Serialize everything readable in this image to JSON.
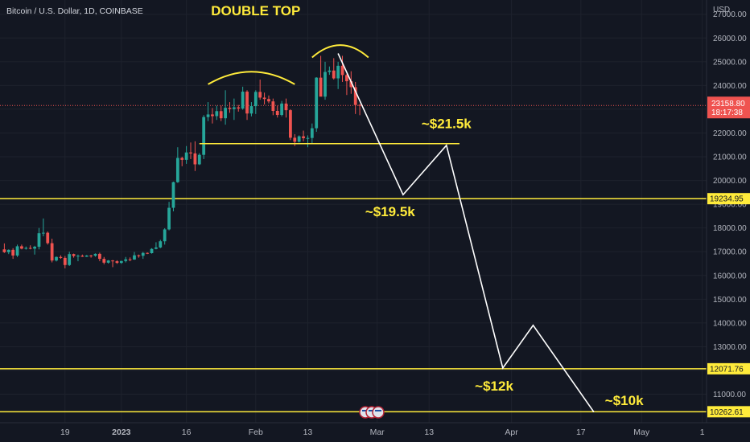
{
  "header": {
    "symbol_title": "Bitcoin / U.S. Dollar, 1D, COINBASE",
    "currency": "USD"
  },
  "colors": {
    "background": "#131722",
    "up": "#26a69a",
    "down": "#ef5350",
    "annotation": "#ffeb3b",
    "projection": "#ffffff",
    "axis_text": "#b2b5be"
  },
  "chart_data": {
    "type": "candlestick",
    "symbol": "Bitcoin / U.S. Dollar",
    "interval": "1D",
    "exchange": "COINBASE",
    "y_ticks": [
      27000,
      26000,
      25000,
      24000,
      23000,
      22000,
      21000,
      20000,
      19000,
      18000,
      17000,
      16000,
      15000,
      14000,
      13000,
      12000,
      11000
    ],
    "ylim": [
      9800,
      27600
    ],
    "x_tick_labels": [
      "19",
      "2023",
      "16",
      "Feb",
      "13",
      "Mar",
      "13",
      "Apr",
      "17",
      "May",
      "1"
    ],
    "x_tick_dates": [
      "2022-12-19",
      "2023-01-01",
      "2023-01-16",
      "2023-02-01",
      "2023-02-13",
      "2023-03-01",
      "2023-03-13",
      "2023-04-01",
      "2023-04-17",
      "2023-05-01",
      "2023-05-15"
    ],
    "xlim": [
      "2022-12-04",
      "2023-05-16"
    ],
    "candles": [
      {
        "d": "2022-12-05",
        "o": 17100,
        "h": 17350,
        "l": 16950,
        "c": 16980
      },
      {
        "d": "2022-12-06",
        "o": 16980,
        "h": 17100,
        "l": 16900,
        "c": 17080
      },
      {
        "d": "2022-12-07",
        "o": 17080,
        "h": 17150,
        "l": 16700,
        "c": 16840
      },
      {
        "d": "2022-12-08",
        "o": 16840,
        "h": 17300,
        "l": 16780,
        "c": 17230
      },
      {
        "d": "2022-12-09",
        "o": 17230,
        "h": 17300,
        "l": 17100,
        "c": 17130
      },
      {
        "d": "2022-12-10",
        "o": 17130,
        "h": 17220,
        "l": 17090,
        "c": 17160
      },
      {
        "d": "2022-12-11",
        "o": 17160,
        "h": 17270,
        "l": 17100,
        "c": 17130
      },
      {
        "d": "2022-12-12",
        "o": 17130,
        "h": 17250,
        "l": 16880,
        "c": 17210
      },
      {
        "d": "2022-12-13",
        "o": 17210,
        "h": 18000,
        "l": 17100,
        "c": 17780
      },
      {
        "d": "2022-12-14",
        "o": 17780,
        "h": 18400,
        "l": 17650,
        "c": 17800
      },
      {
        "d": "2022-12-15",
        "o": 17800,
        "h": 17850,
        "l": 17300,
        "c": 17360
      },
      {
        "d": "2022-12-16",
        "o": 17360,
        "h": 17550,
        "l": 16550,
        "c": 16630
      },
      {
        "d": "2022-12-17",
        "o": 16630,
        "h": 16800,
        "l": 16590,
        "c": 16780
      },
      {
        "d": "2022-12-18",
        "o": 16780,
        "h": 16850,
        "l": 16700,
        "c": 16740
      },
      {
        "d": "2022-12-19",
        "o": 16740,
        "h": 16820,
        "l": 16300,
        "c": 16440
      },
      {
        "d": "2022-12-20",
        "o": 16440,
        "h": 17000,
        "l": 16400,
        "c": 16900
      },
      {
        "d": "2022-12-21",
        "o": 16900,
        "h": 16920,
        "l": 16750,
        "c": 16820
      },
      {
        "d": "2022-12-22",
        "o": 16820,
        "h": 16880,
        "l": 16600,
        "c": 16830
      },
      {
        "d": "2022-12-23",
        "o": 16830,
        "h": 16880,
        "l": 16780,
        "c": 16790
      },
      {
        "d": "2022-12-24",
        "o": 16790,
        "h": 16860,
        "l": 16780,
        "c": 16840
      },
      {
        "d": "2022-12-25",
        "o": 16840,
        "h": 16870,
        "l": 16750,
        "c": 16830
      },
      {
        "d": "2022-12-26",
        "o": 16830,
        "h": 16930,
        "l": 16790,
        "c": 16910
      },
      {
        "d": "2022-12-27",
        "o": 16910,
        "h": 16960,
        "l": 16600,
        "c": 16700
      },
      {
        "d": "2022-12-28",
        "o": 16700,
        "h": 16780,
        "l": 16470,
        "c": 16540
      },
      {
        "d": "2022-12-29",
        "o": 16540,
        "h": 16650,
        "l": 16500,
        "c": 16630
      },
      {
        "d": "2022-12-30",
        "o": 16630,
        "h": 16650,
        "l": 16350,
        "c": 16600
      },
      {
        "d": "2022-12-31",
        "o": 16600,
        "h": 16640,
        "l": 16490,
        "c": 16530
      },
      {
        "d": "2023-01-01",
        "o": 16530,
        "h": 16620,
        "l": 16490,
        "c": 16610
      },
      {
        "d": "2023-01-02",
        "o": 16610,
        "h": 16780,
        "l": 16550,
        "c": 16680
      },
      {
        "d": "2023-01-03",
        "o": 16680,
        "h": 16760,
        "l": 16600,
        "c": 16670
      },
      {
        "d": "2023-01-04",
        "o": 16670,
        "h": 16990,
        "l": 16660,
        "c": 16850
      },
      {
        "d": "2023-01-05",
        "o": 16850,
        "h": 16880,
        "l": 16750,
        "c": 16830
      },
      {
        "d": "2023-01-06",
        "o": 16830,
        "h": 16990,
        "l": 16700,
        "c": 16950
      },
      {
        "d": "2023-01-07",
        "o": 16950,
        "h": 16970,
        "l": 16900,
        "c": 16940
      },
      {
        "d": "2023-01-08",
        "o": 16940,
        "h": 17150,
        "l": 16920,
        "c": 17120
      },
      {
        "d": "2023-01-09",
        "o": 17120,
        "h": 17400,
        "l": 17100,
        "c": 17180
      },
      {
        "d": "2023-01-10",
        "o": 17180,
        "h": 17500,
        "l": 17150,
        "c": 17440
      },
      {
        "d": "2023-01-11",
        "o": 17440,
        "h": 17990,
        "l": 17300,
        "c": 17940
      },
      {
        "d": "2023-01-12",
        "o": 17940,
        "h": 19100,
        "l": 17900,
        "c": 18850
      },
      {
        "d": "2023-01-13",
        "o": 18850,
        "h": 19950,
        "l": 18700,
        "c": 19930
      },
      {
        "d": "2023-01-14",
        "o": 19930,
        "h": 21400,
        "l": 19900,
        "c": 20950
      },
      {
        "d": "2023-01-15",
        "o": 20950,
        "h": 21000,
        "l": 20600,
        "c": 20870
      },
      {
        "d": "2023-01-16",
        "o": 20870,
        "h": 21450,
        "l": 20700,
        "c": 21180
      },
      {
        "d": "2023-01-17",
        "o": 21180,
        "h": 21600,
        "l": 20900,
        "c": 21140
      },
      {
        "d": "2023-01-18",
        "o": 21140,
        "h": 21650,
        "l": 20400,
        "c": 20680
      },
      {
        "d": "2023-01-19",
        "o": 20680,
        "h": 21150,
        "l": 20650,
        "c": 21080
      },
      {
        "d": "2023-01-20",
        "o": 21080,
        "h": 22750,
        "l": 20900,
        "c": 22670
      },
      {
        "d": "2023-01-21",
        "o": 22670,
        "h": 23300,
        "l": 22500,
        "c": 22780
      },
      {
        "d": "2023-01-22",
        "o": 22780,
        "h": 23050,
        "l": 22400,
        "c": 22710
      },
      {
        "d": "2023-01-23",
        "o": 22710,
        "h": 23150,
        "l": 22550,
        "c": 22920
      },
      {
        "d": "2023-01-24",
        "o": 22920,
        "h": 23150,
        "l": 22500,
        "c": 22620
      },
      {
        "d": "2023-01-25",
        "o": 22620,
        "h": 23800,
        "l": 22350,
        "c": 23060
      },
      {
        "d": "2023-01-26",
        "o": 23060,
        "h": 23300,
        "l": 22850,
        "c": 23010
      },
      {
        "d": "2023-01-27",
        "o": 23010,
        "h": 23450,
        "l": 22550,
        "c": 23080
      },
      {
        "d": "2023-01-28",
        "o": 23080,
        "h": 23180,
        "l": 22900,
        "c": 23030
      },
      {
        "d": "2023-01-29",
        "o": 23030,
        "h": 23950,
        "l": 22980,
        "c": 23740
      },
      {
        "d": "2023-01-30",
        "o": 23740,
        "h": 23800,
        "l": 22550,
        "c": 22820
      },
      {
        "d": "2023-01-31",
        "o": 22820,
        "h": 23300,
        "l": 22700,
        "c": 23130
      },
      {
        "d": "2023-02-01",
        "o": 23130,
        "h": 23800,
        "l": 22800,
        "c": 23730
      },
      {
        "d": "2023-02-02",
        "o": 23730,
        "h": 24250,
        "l": 23400,
        "c": 23490
      },
      {
        "d": "2023-02-03",
        "o": 23490,
        "h": 23700,
        "l": 23200,
        "c": 23430
      },
      {
        "d": "2023-02-04",
        "o": 23430,
        "h": 23580,
        "l": 23250,
        "c": 23330
      },
      {
        "d": "2023-02-05",
        "o": 23330,
        "h": 23450,
        "l": 22750,
        "c": 22930
      },
      {
        "d": "2023-02-06",
        "o": 22930,
        "h": 23150,
        "l": 22650,
        "c": 22760
      },
      {
        "d": "2023-02-07",
        "o": 22760,
        "h": 23350,
        "l": 22700,
        "c": 23240
      },
      {
        "d": "2023-02-08",
        "o": 23240,
        "h": 23450,
        "l": 22650,
        "c": 22960
      },
      {
        "d": "2023-02-09",
        "o": 22960,
        "h": 23000,
        "l": 21700,
        "c": 21800
      },
      {
        "d": "2023-02-10",
        "o": 21800,
        "h": 21950,
        "l": 21450,
        "c": 21630
      },
      {
        "d": "2023-02-11",
        "o": 21630,
        "h": 21900,
        "l": 21600,
        "c": 21860
      },
      {
        "d": "2023-02-12",
        "o": 21860,
        "h": 22100,
        "l": 21650,
        "c": 21780
      },
      {
        "d": "2023-02-13",
        "o": 21780,
        "h": 21900,
        "l": 21400,
        "c": 21790
      },
      {
        "d": "2023-02-14",
        "o": 21790,
        "h": 22400,
        "l": 21550,
        "c": 22200
      },
      {
        "d": "2023-02-15",
        "o": 22200,
        "h": 24350,
        "l": 22050,
        "c": 24330
      },
      {
        "d": "2023-02-16",
        "o": 24330,
        "h": 25250,
        "l": 23550,
        "c": 23530
      },
      {
        "d": "2023-02-17",
        "o": 23530,
        "h": 25000,
        "l": 23400,
        "c": 24570
      },
      {
        "d": "2023-02-18",
        "o": 24570,
        "h": 24800,
        "l": 24450,
        "c": 24630
      },
      {
        "d": "2023-02-19",
        "o": 24630,
        "h": 25150,
        "l": 24250,
        "c": 24300
      },
      {
        "d": "2023-02-20",
        "o": 24300,
        "h": 25000,
        "l": 23850,
        "c": 24830
      },
      {
        "d": "2023-02-21",
        "o": 24830,
        "h": 25250,
        "l": 24150,
        "c": 24440
      },
      {
        "d": "2023-02-22",
        "o": 24440,
        "h": 24500,
        "l": 23600,
        "c": 24180
      },
      {
        "d": "2023-02-23",
        "o": 24180,
        "h": 24600,
        "l": 23650,
        "c": 23930
      },
      {
        "d": "2023-02-24",
        "o": 23930,
        "h": 24150,
        "l": 22800,
        "c": 23180
      },
      {
        "d": "2023-02-25",
        "o": 23180,
        "h": 23220,
        "l": 22750,
        "c": 23159
      }
    ],
    "horizontal_levels": [
      {
        "label": "19234.95",
        "price": 19234.95
      },
      {
        "label": "12071.76",
        "price": 12071.76
      },
      {
        "label": "10262.61",
        "price": 10262.61
      }
    ],
    "neckline": {
      "price": 21550,
      "from": "2023-01-19",
      "to": "2023-03-20"
    },
    "last_price": {
      "value": "23158.80",
      "countdown": "18:17:38",
      "price": 23158.8
    },
    "projection_path": [
      {
        "d": "2023-02-20",
        "p": 25350
      },
      {
        "d": "2023-03-07",
        "p": 19400
      },
      {
        "d": "2023-03-17",
        "p": 21480
      },
      {
        "d": "2023-03-30",
        "p": 12100
      },
      {
        "d": "2023-04-06",
        "p": 13900
      },
      {
        "d": "2023-04-20",
        "p": 10250
      }
    ],
    "annotations": [
      {
        "text": "DOUBLE TOP",
        "d": "2023-02-01",
        "p": 26950
      },
      {
        "text": "~$21.5k",
        "d": "2023-03-17",
        "p": 22200
      },
      {
        "text": "~$19.5k",
        "d": "2023-03-04",
        "p": 18500
      },
      {
        "text": "~$12k",
        "d": "2023-03-28",
        "p": 11150
      },
      {
        "text": "~$10k",
        "d": "2023-04-27",
        "p": 10550
      }
    ],
    "arcs": [
      {
        "name": "first-top",
        "from": "2023-01-21",
        "to": "2023-02-10",
        "base": 24050,
        "peak": 24580
      },
      {
        "name": "second-top",
        "from": "2023-02-14",
        "to": "2023-02-27",
        "base": 25180,
        "peak": 25700
      }
    ]
  }
}
